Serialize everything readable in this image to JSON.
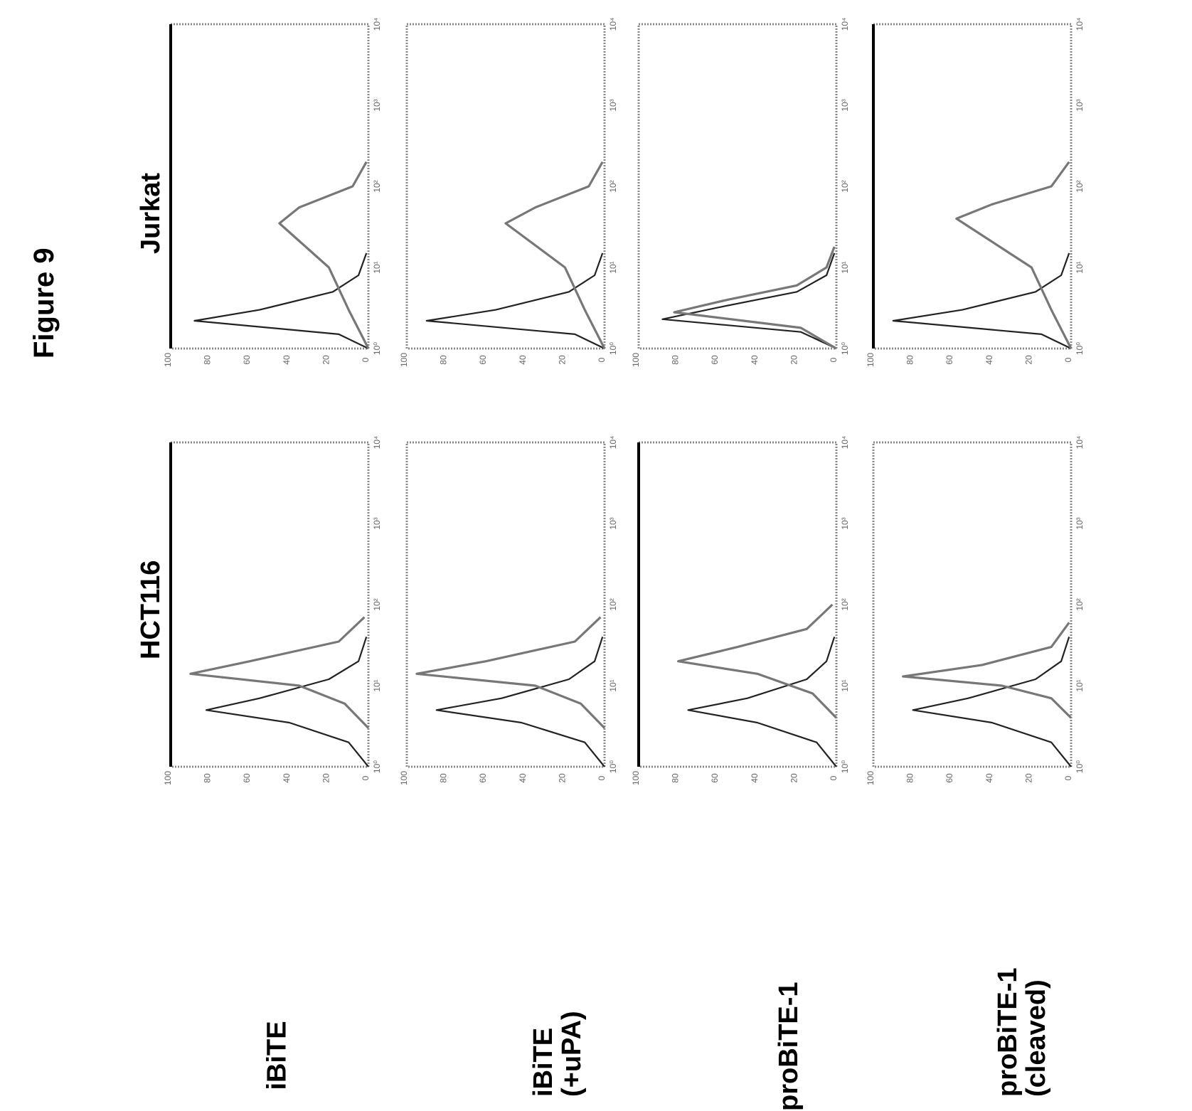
{
  "figure": {
    "title": "Figure 9",
    "columns": [
      "HCT116",
      "Jurkat"
    ],
    "rows": [
      {
        "line1": "iBiTE",
        "line2": ""
      },
      {
        "line1": "iBiTE",
        "line2": "(+uPA)"
      },
      {
        "line1": "proBiTE-1",
        "line2": ""
      },
      {
        "line1": "proBiTE-1",
        "line2": "(cleaved)"
      }
    ]
  },
  "chart_data": [
    {
      "type": "line",
      "panel": "HCT116 / iBiTE",
      "xscale": "log",
      "xlim": [
        1,
        10000
      ],
      "ylim": [
        0,
        100
      ],
      "x_ticks": [
        "10⁰",
        "10¹",
        "10²",
        "10³",
        "10⁴"
      ],
      "y_ticks": [
        "0",
        "20",
        "40",
        "60",
        "80",
        "100"
      ],
      "series": [
        {
          "values": [
            [
              1,
              0
            ],
            [
              2,
              10
            ],
            [
              3.5,
              40
            ],
            [
              5,
              82
            ],
            [
              7,
              55
            ],
            [
              12,
              20
            ],
            [
              20,
              5
            ],
            [
              40,
              1
            ]
          ]
        },
        {
          "values": [
            [
              3,
              0
            ],
            [
              6,
              12
            ],
            [
              10,
              35
            ],
            [
              14,
              90
            ],
            [
              20,
              60
            ],
            [
              35,
              15
            ],
            [
              70,
              2
            ]
          ]
        }
      ]
    },
    {
      "type": "line",
      "panel": "HCT116 / iBiTE (+uPA)",
      "xscale": "log",
      "xlim": [
        1,
        10000
      ],
      "ylim": [
        0,
        100
      ],
      "x_ticks": [
        "10⁰",
        "10¹",
        "10²",
        "10³",
        "10⁴"
      ],
      "y_ticks": [
        "0",
        "20",
        "40",
        "60",
        "80",
        "100"
      ],
      "series": [
        {
          "values": [
            [
              1,
              0
            ],
            [
              2,
              10
            ],
            [
              3.5,
              42
            ],
            [
              5,
              85
            ],
            [
              7,
              52
            ],
            [
              12,
              18
            ],
            [
              20,
              5
            ],
            [
              40,
              1
            ]
          ]
        },
        {
          "values": [
            [
              3,
              0
            ],
            [
              6,
              12
            ],
            [
              10,
              35
            ],
            [
              14,
              95
            ],
            [
              20,
              60
            ],
            [
              35,
              15
            ],
            [
              70,
              2
            ]
          ]
        }
      ]
    },
    {
      "type": "line",
      "panel": "HCT116 / proBiTE-1",
      "xscale": "log",
      "xlim": [
        1,
        10000
      ],
      "ylim": [
        0,
        100
      ],
      "x_ticks": [
        "10⁰",
        "10¹",
        "10²",
        "10³",
        "10⁴"
      ],
      "y_ticks": [
        "0",
        "20",
        "40",
        "60",
        "80",
        "100"
      ],
      "series": [
        {
          "values": [
            [
              1,
              0
            ],
            [
              2,
              10
            ],
            [
              3.5,
              40
            ],
            [
              5,
              75
            ],
            [
              7,
              45
            ],
            [
              12,
              15
            ],
            [
              20,
              5
            ],
            [
              40,
              1
            ]
          ]
        },
        {
          "values": [
            [
              4,
              0
            ],
            [
              8,
              12
            ],
            [
              14,
              40
            ],
            [
              20,
              80
            ],
            [
              30,
              50
            ],
            [
              50,
              15
            ],
            [
              100,
              2
            ]
          ]
        }
      ]
    },
    {
      "type": "line",
      "panel": "HCT116 / proBiTE-1 (cleaved)",
      "xscale": "log",
      "xlim": [
        1,
        10000
      ],
      "ylim": [
        0,
        100
      ],
      "x_ticks": [
        "10⁰",
        "10¹",
        "10²",
        "10³",
        "10⁴"
      ],
      "y_ticks": [
        "0",
        "20",
        "40",
        "60",
        "80",
        "100"
      ],
      "series": [
        {
          "values": [
            [
              1,
              0
            ],
            [
              2,
              10
            ],
            [
              3.5,
              40
            ],
            [
              5,
              80
            ],
            [
              7,
              52
            ],
            [
              12,
              18
            ],
            [
              20,
              5
            ],
            [
              40,
              1
            ]
          ]
        },
        {
          "values": [
            [
              4,
              0
            ],
            [
              7,
              10
            ],
            [
              10,
              35
            ],
            [
              13,
              85
            ],
            [
              18,
              45
            ],
            [
              30,
              10
            ],
            [
              60,
              1
            ]
          ]
        }
      ]
    },
    {
      "type": "line",
      "panel": "Jurkat / iBiTE",
      "xscale": "log",
      "xlim": [
        1,
        10000
      ],
      "ylim": [
        0,
        100
      ],
      "x_ticks": [
        "10⁰",
        "10¹",
        "10²",
        "10³",
        "10⁴"
      ],
      "y_ticks": [
        "0",
        "20",
        "40",
        "60",
        "80",
        "100"
      ],
      "series": [
        {
          "values": [
            [
              1,
              0
            ],
            [
              1.5,
              15
            ],
            [
              2.2,
              88
            ],
            [
              3,
              55
            ],
            [
              5,
              18
            ],
            [
              8,
              5
            ],
            [
              15,
              1
            ]
          ]
        },
        {
          "values": [
            [
              1,
              0
            ],
            [
              3,
              10
            ],
            [
              10,
              20
            ],
            [
              35,
              45
            ],
            [
              55,
              35
            ],
            [
              100,
              8
            ],
            [
              200,
              1
            ]
          ]
        }
      ]
    },
    {
      "type": "line",
      "panel": "Jurkat / iBiTE (+uPA)",
      "xscale": "log",
      "xlim": [
        1,
        10000
      ],
      "ylim": [
        0,
        100
      ],
      "x_ticks": [
        "10⁰",
        "10¹",
        "10²",
        "10³",
        "10⁴"
      ],
      "y_ticks": [
        "0",
        "20",
        "40",
        "60",
        "80",
        "100"
      ],
      "series": [
        {
          "values": [
            [
              1,
              0
            ],
            [
              1.5,
              15
            ],
            [
              2.2,
              90
            ],
            [
              3,
              55
            ],
            [
              5,
              18
            ],
            [
              8,
              5
            ],
            [
              15,
              1
            ]
          ]
        },
        {
          "values": [
            [
              1,
              0
            ],
            [
              3,
              10
            ],
            [
              10,
              20
            ],
            [
              35,
              50
            ],
            [
              55,
              35
            ],
            [
              100,
              8
            ],
            [
              200,
              1
            ]
          ]
        }
      ]
    },
    {
      "type": "line",
      "panel": "Jurkat / proBiTE-1",
      "xscale": "log",
      "xlim": [
        1,
        10000
      ],
      "ylim": [
        0,
        100
      ],
      "x_ticks": [
        "10⁰",
        "10¹",
        "10²",
        "10³",
        "10⁴"
      ],
      "y_ticks": [
        "0",
        "20",
        "40",
        "60",
        "80",
        "100"
      ],
      "series": [
        {
          "values": [
            [
              1,
              0
            ],
            [
              1.6,
              18
            ],
            [
              2.3,
              88
            ],
            [
              3.2,
              60
            ],
            [
              5,
              20
            ],
            [
              8,
              5
            ],
            [
              15,
              1
            ]
          ]
        },
        {
          "values": [
            [
              1,
              0
            ],
            [
              1.8,
              18
            ],
            [
              2.8,
              82
            ],
            [
              4,
              55
            ],
            [
              6,
              20
            ],
            [
              10,
              5
            ],
            [
              18,
              1
            ]
          ]
        }
      ]
    },
    {
      "type": "line",
      "panel": "Jurkat / proBiTE-1 (cleaved)",
      "xscale": "log",
      "xlim": [
        1,
        10000
      ],
      "ylim": [
        0,
        100
      ],
      "x_ticks": [
        "10⁰",
        "10¹",
        "10²",
        "10³",
        "10⁴"
      ],
      "y_ticks": [
        "0",
        "20",
        "40",
        "60",
        "80",
        "100"
      ],
      "series": [
        {
          "values": [
            [
              1,
              0
            ],
            [
              1.5,
              15
            ],
            [
              2.2,
              90
            ],
            [
              3,
              55
            ],
            [
              5,
              18
            ],
            [
              8,
              5
            ],
            [
              15,
              1
            ]
          ]
        },
        {
          "values": [
            [
              1,
              0
            ],
            [
              3,
              10
            ],
            [
              10,
              20
            ],
            [
              40,
              58
            ],
            [
              60,
              40
            ],
            [
              100,
              10
            ],
            [
              200,
              1
            ]
          ]
        }
      ]
    }
  ]
}
